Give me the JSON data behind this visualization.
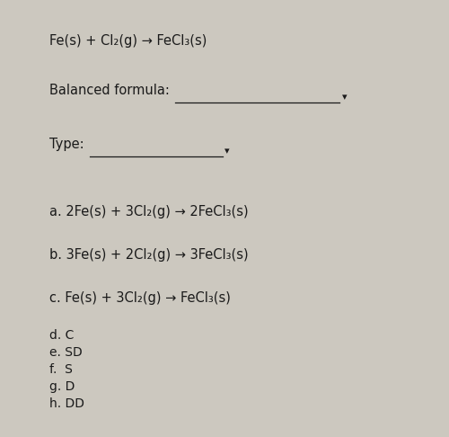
{
  "bg_color": "#ccc8bf",
  "text_color": "#1a1a1a",
  "title_equation": "Fe(s) + Cl₂(g) → FeCl₃(s)",
  "balanced_label": "Balanced formula:",
  "type_label": "Type:",
  "options": [
    "a. 2Fe(s) + 3Cl₂(g) → 2FeCl₃(s)",
    "b. 3Fe(s) + 2Cl₂(g) → 3FeCl₃(s)",
    "c. Fe(s) + 3Cl₂(g) → FeCl₃(s)"
  ],
  "list_items": [
    "d. C",
    "e. SD",
    "f.  S",
    "g. D",
    "h. DD"
  ],
  "fig_width": 5.0,
  "fig_height": 4.86,
  "dpi": 100
}
